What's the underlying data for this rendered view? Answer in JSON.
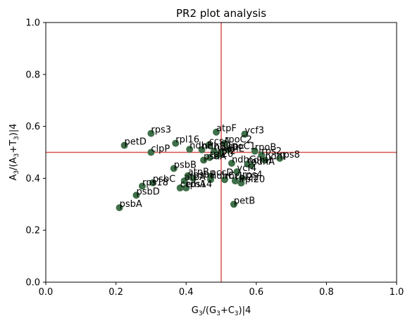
{
  "chart_data": {
    "type": "scatter",
    "title": "PR2 plot analysis",
    "xlabel": "G3/(G3+C3)|4",
    "ylabel": "A3/(A3+T3)|4",
    "xlim": [
      0,
      1
    ],
    "ylim": [
      0,
      1
    ],
    "xticks": [
      "0.0",
      "0.2",
      "0.4",
      "0.6",
      "0.8",
      "1.0"
    ],
    "yticks": [
      "0.0",
      "0.2",
      "0.4",
      "0.6",
      "0.8",
      "1.0"
    ],
    "grid": false,
    "reference_lines": {
      "x": 0.5,
      "y": 0.5,
      "color": "#d9534f"
    },
    "point_color": "#3f7049",
    "points": [
      {
        "label": "rps3",
        "x": 0.3,
        "y": 0.573
      },
      {
        "label": "atpF",
        "x": 0.486,
        "y": 0.578
      },
      {
        "label": "ycf3",
        "x": 0.567,
        "y": 0.57
      },
      {
        "label": "petD",
        "x": 0.224,
        "y": 0.527
      },
      {
        "label": "clpP",
        "x": 0.3,
        "y": 0.5
      },
      {
        "label": "rpl16",
        "x": 0.37,
        "y": 0.535
      },
      {
        "label": "ccsA",
        "x": 0.465,
        "y": 0.528
      },
      {
        "label": "rpoC2",
        "x": 0.51,
        "y": 0.535
      },
      {
        "label": "ndhF",
        "x": 0.41,
        "y": 0.512
      },
      {
        "label": "ndhB",
        "x": 0.445,
        "y": 0.51
      },
      {
        "label": "ndhD",
        "x": 0.48,
        "y": 0.505
      },
      {
        "label": "rpoC1",
        "x": 0.52,
        "y": 0.51
      },
      {
        "label": "rpl2",
        "x": 0.49,
        "y": 0.49
      },
      {
        "label": "ndhE",
        "x": 0.5,
        "y": 0.5
      },
      {
        "label": "rpoB",
        "x": 0.596,
        "y": 0.505
      },
      {
        "label": "rps2",
        "x": 0.615,
        "y": 0.49
      },
      {
        "label": "rps8",
        "x": 0.667,
        "y": 0.477
      },
      {
        "label": "ndhI",
        "x": 0.625,
        "y": 0.47
      },
      {
        "label": "psaA",
        "x": 0.45,
        "y": 0.47
      },
      {
        "label": "rpl20",
        "x": 0.467,
        "y": 0.48
      },
      {
        "label": "psbB",
        "x": 0.365,
        "y": 0.438
      },
      {
        "label": "ndhG",
        "x": 0.53,
        "y": 0.458
      },
      {
        "label": "ndhH",
        "x": 0.575,
        "y": 0.455
      },
      {
        "label": "ndhA",
        "x": 0.585,
        "y": 0.45
      },
      {
        "label": "atpB",
        "x": 0.405,
        "y": 0.41
      },
      {
        "label": "accD",
        "x": 0.47,
        "y": 0.408
      },
      {
        "label": "ycf4",
        "x": 0.545,
        "y": 0.425
      },
      {
        "label": "psbE",
        "x": 0.42,
        "y": 0.4
      },
      {
        "label": "ndhC",
        "x": 0.47,
        "y": 0.395
      },
      {
        "label": "atpA",
        "x": 0.395,
        "y": 0.39
      },
      {
        "label": "rbcL",
        "x": 0.51,
        "y": 0.395
      },
      {
        "label": "rps4",
        "x": 0.56,
        "y": 0.4
      },
      {
        "label": "rpl22",
        "x": 0.54,
        "y": 0.39
      },
      {
        "label": "rpl20",
        "x": 0.557,
        "y": 0.382
      },
      {
        "label": "psbC",
        "x": 0.305,
        "y": 0.383
      },
      {
        "label": "rps18",
        "x": 0.275,
        "y": 0.37
      },
      {
        "label": "cemA",
        "x": 0.383,
        "y": 0.363
      },
      {
        "label": "rps14",
        "x": 0.4,
        "y": 0.363
      },
      {
        "label": "psbD",
        "x": 0.258,
        "y": 0.335
      },
      {
        "label": "psbA",
        "x": 0.21,
        "y": 0.287
      },
      {
        "label": "petB",
        "x": 0.536,
        "y": 0.3
      }
    ]
  }
}
